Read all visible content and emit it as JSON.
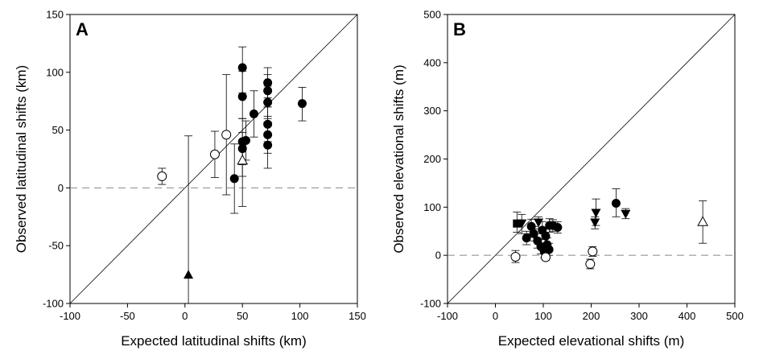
{
  "chart_data": [
    {
      "type": "scatter",
      "panel_label": "A",
      "xlabel": "Expected latitudinal shifts (km)",
      "ylabel": "Observed latitudinal shifts (km)",
      "xlim": [
        -100,
        150
      ],
      "ylim": [
        -100,
        150
      ],
      "xticks": [
        -100,
        -50,
        0,
        50,
        100,
        150
      ],
      "yticks": [
        -100,
        -50,
        0,
        50,
        100,
        150
      ],
      "reference_lines": [
        {
          "kind": "1:1 line",
          "style": "solid"
        },
        {
          "kind": "y = 0",
          "style": "dashed"
        }
      ],
      "grid": false,
      "series": [
        {
          "marker": "filled-circle",
          "points": [
            {
              "x": 50,
              "y": 104,
              "err_low": 82,
              "err_high": 122
            },
            {
              "x": 50,
              "y": 79,
              "err_low": 60,
              "err_high": 101
            },
            {
              "x": 50,
              "y": 40,
              "err_low": -16,
              "err_high": 60
            },
            {
              "x": 50,
              "y": 34,
              "err_low": 20,
              "err_high": 48
            },
            {
              "x": 53,
              "y": 41,
              "err_low": 24,
              "err_high": 58
            },
            {
              "x": 43,
              "y": 8,
              "err_low": -22,
              "err_high": 38
            },
            {
              "x": 60,
              "y": 64,
              "err_low": 44,
              "err_high": 84
            },
            {
              "x": 72,
              "y": 91,
              "err_low": 78,
              "err_high": 104
            },
            {
              "x": 72,
              "y": 84,
              "err_low": 70,
              "err_high": 98
            },
            {
              "x": 72,
              "y": 74,
              "err_low": 60,
              "err_high": 88
            },
            {
              "x": 72,
              "y": 55,
              "err_low": 40,
              "err_high": 70
            },
            {
              "x": 72,
              "y": 46,
              "err_low": 30,
              "err_high": 62
            },
            {
              "x": 72,
              "y": 37,
              "err_low": 17,
              "err_high": 57
            },
            {
              "x": 102,
              "y": 73,
              "err_low": 58,
              "err_high": 87
            }
          ]
        },
        {
          "marker": "open-circle",
          "points": [
            {
              "x": -20,
              "y": 10,
              "err_low": 3,
              "err_high": 17
            },
            {
              "x": 26,
              "y": 29,
              "err_low": 9,
              "err_high": 49
            },
            {
              "x": 36,
              "y": 46,
              "err_low": -6,
              "err_high": 98
            }
          ]
        },
        {
          "marker": "open-triangle",
          "points": [
            {
              "x": 50,
              "y": 24,
              "err_low": 10,
              "err_high": 38
            }
          ]
        },
        {
          "marker": "filled-triangle",
          "points": [
            {
              "x": 3,
              "y": -75,
              "err_low": -100,
              "err_high": 45
            }
          ]
        }
      ]
    },
    {
      "type": "scatter",
      "panel_label": "B",
      "xlabel": "Expected elevational shifts (m)",
      "ylabel": "Observed elevational shifts (m)",
      "xlim": [
        -100,
        500
      ],
      "ylim": [
        -100,
        500
      ],
      "xticks": [
        -100,
        0,
        100,
        200,
        300,
        400,
        500
      ],
      "yticks": [
        -100,
        0,
        100,
        200,
        300,
        400,
        500
      ],
      "reference_lines": [
        {
          "kind": "1:1 line",
          "style": "solid"
        },
        {
          "kind": "y = 0",
          "style": "dashed"
        }
      ],
      "grid": false,
      "series": [
        {
          "marker": "filled-circle",
          "points": [
            {
              "x": 65,
              "y": 36,
              "err_low": 22,
              "err_high": 50
            },
            {
              "x": 75,
              "y": 60,
              "err_low": 45,
              "err_high": 75
            },
            {
              "x": 80,
              "y": 45,
              "err_low": 30,
              "err_high": 60
            },
            {
              "x": 88,
              "y": 30,
              "err_low": 15,
              "err_high": 45
            },
            {
              "x": 95,
              "y": 18,
              "err_low": 3,
              "err_high": 33
            },
            {
              "x": 98,
              "y": 52,
              "err_low": 35,
              "err_high": 70
            },
            {
              "x": 102,
              "y": 8,
              "err_low": -5,
              "err_high": 22
            },
            {
              "x": 105,
              "y": 40,
              "err_low": 25,
              "err_high": 55
            },
            {
              "x": 108,
              "y": 22,
              "err_low": 8,
              "err_high": 36
            },
            {
              "x": 112,
              "y": 12,
              "err_low": 0,
              "err_high": 25
            },
            {
              "x": 113,
              "y": 62,
              "err_low": 48,
              "err_high": 76
            },
            {
              "x": 120,
              "y": 62,
              "err_low": 50,
              "err_high": 74
            },
            {
              "x": 130,
              "y": 58,
              "err_low": 46,
              "err_high": 70
            },
            {
              "x": 252,
              "y": 108,
              "err_low": 80,
              "err_high": 138
            }
          ]
        },
        {
          "marker": "open-circle",
          "points": [
            {
              "x": 42,
              "y": -3,
              "err_low": -15,
              "err_high": 10
            },
            {
              "x": 105,
              "y": -4,
              "err_low": -10,
              "err_high": 2
            },
            {
              "x": 198,
              "y": -18,
              "err_low": -28,
              "err_high": -8
            },
            {
              "x": 203,
              "y": 8,
              "err_low": -2,
              "err_high": 18
            }
          ]
        },
        {
          "marker": "filled-square",
          "points": [
            {
              "x": 45,
              "y": 66,
              "err_low": 48,
              "err_high": 90
            }
          ]
        },
        {
          "marker": "filled-triangle-down",
          "points": [
            {
              "x": 55,
              "y": 66,
              "err_low": 45,
              "err_high": 85
            },
            {
              "x": 210,
              "y": 88,
              "err_low": 62,
              "err_high": 117
            },
            {
              "x": 208,
              "y": 68,
              "err_low": 55,
              "err_high": 80
            },
            {
              "x": 272,
              "y": 86,
              "err_low": 76,
              "err_high": 97
            },
            {
              "x": 90,
              "y": 68,
              "err_low": 55,
              "err_high": 80
            }
          ]
        },
        {
          "marker": "open-triangle",
          "points": [
            {
              "x": 433,
              "y": 70,
              "err_low": 25,
              "err_high": 113
            }
          ]
        }
      ]
    }
  ]
}
